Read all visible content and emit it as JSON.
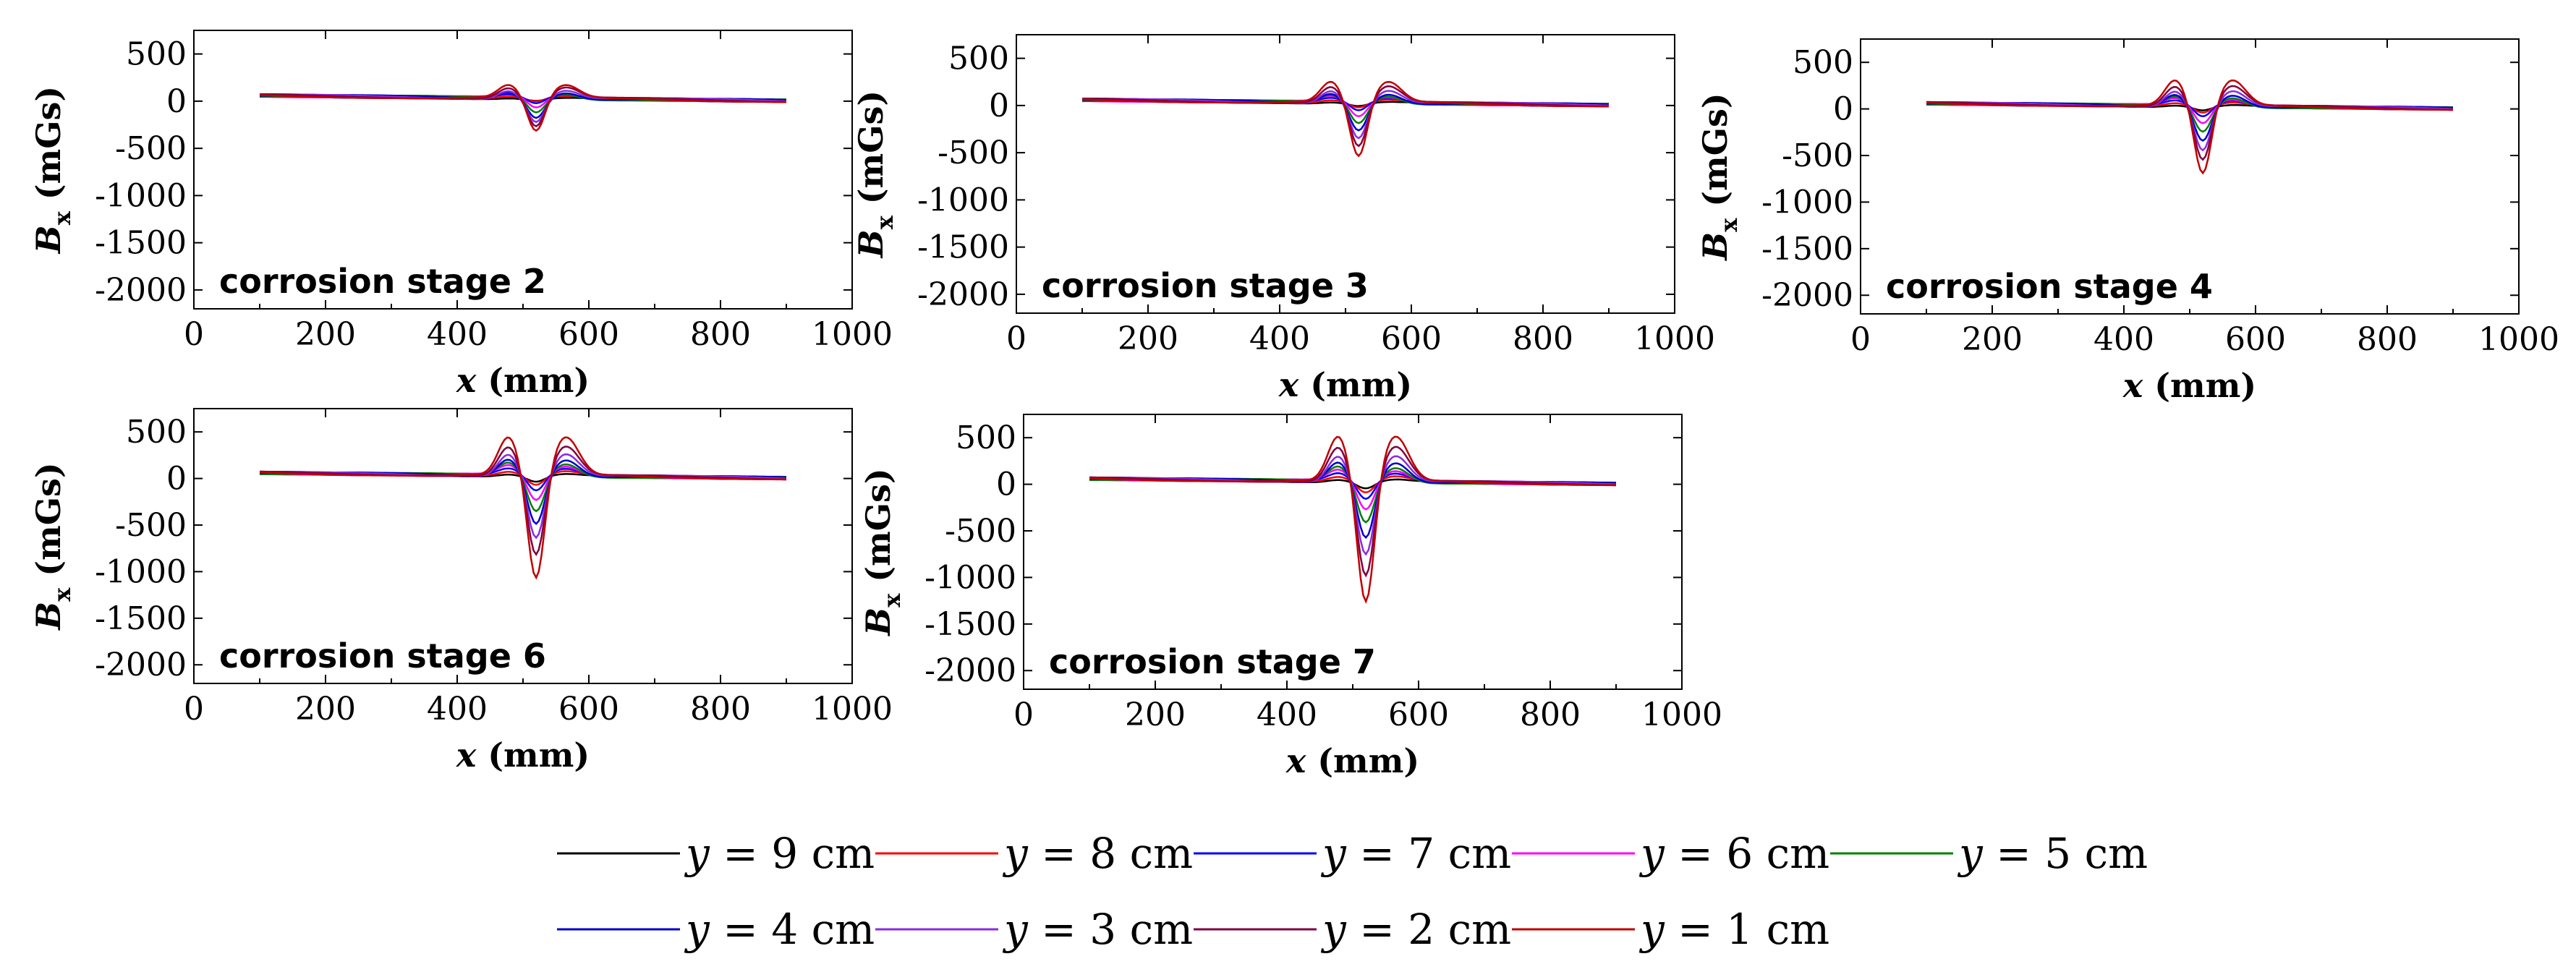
{
  "chart_data": [
    {
      "type": "line",
      "annotation": "corrosion stage 2",
      "xlabel_var": "x",
      "xlabel_unit": " (mm)",
      "ylabel_var": "B",
      "ylabel_sub": "x",
      "ylabel_unit": " (mGs)",
      "xlim": [
        0,
        1000
      ],
      "ylim": [
        -2200,
        750
      ],
      "xticks": [
        0,
        200,
        400,
        600,
        800,
        1000
      ],
      "yticks": [
        500,
        0,
        -500,
        -1000,
        -1500,
        -2000
      ],
      "amplitudes": [
        -20,
        -40,
        -70,
        -110,
        -150,
        -200,
        -250,
        -310,
        -370
      ]
    },
    {
      "type": "line",
      "annotation": "corrosion stage 3",
      "xlabel_var": "x",
      "xlabel_unit": " (mm)",
      "ylabel_var": "B",
      "ylabel_sub": "x",
      "ylabel_unit": " (mGs)",
      "xlim": [
        0,
        1000
      ],
      "ylim": [
        -2200,
        750
      ],
      "xticks": [
        0,
        200,
        400,
        600,
        800,
        1000
      ],
      "yticks": [
        500,
        0,
        -500,
        -1000,
        -1500,
        -2000
      ],
      "amplitudes": [
        -30,
        -60,
        -100,
        -160,
        -220,
        -290,
        -380,
        -480,
        -600
      ]
    },
    {
      "type": "line",
      "annotation": "corrosion stage 4",
      "xlabel_var": "x",
      "xlabel_unit": " (mm)",
      "ylabel_var": "B",
      "ylabel_sub": "x",
      "ylabel_unit": " (mGs)",
      "xlim": [
        0,
        1000
      ],
      "ylim": [
        -2200,
        750
      ],
      "xticks": [
        0,
        200,
        400,
        600,
        800,
        1000
      ],
      "yticks": [
        500,
        0,
        -500,
        -1000,
        -1500,
        -2000
      ],
      "amplitudes": [
        -40,
        -80,
        -130,
        -200,
        -280,
        -370,
        -480,
        -600,
        -760
      ]
    },
    {
      "type": "line",
      "annotation": "corrosion stage 6",
      "xlabel_var": "x",
      "xlabel_unit": " (mm)",
      "ylabel_var": "B",
      "ylabel_sub": "x",
      "ylabel_unit": " (mGs)",
      "xlim": [
        0,
        1000
      ],
      "ylim": [
        -2200,
        750
      ],
      "xticks": [
        0,
        200,
        400,
        600,
        800,
        1000
      ],
      "yticks": [
        500,
        0,
        -500,
        -1000,
        -1500,
        -2000
      ],
      "amplitudes": [
        -60,
        -110,
        -180,
        -280,
        -390,
        -520,
        -680,
        -880,
        -1150
      ]
    },
    {
      "type": "line",
      "annotation": "corrosion stage 7",
      "xlabel_var": "x",
      "xlabel_unit": " (mm)",
      "ylabel_var": "B",
      "ylabel_sub": "x",
      "ylabel_unit": " (mGs)",
      "xlim": [
        0,
        1000
      ],
      "ylim": [
        -2200,
        750
      ],
      "xticks": [
        0,
        200,
        400,
        600,
        800,
        1000
      ],
      "yticks": [
        500,
        0,
        -500,
        -1000,
        -1500,
        -2000
      ],
      "amplitudes": [
        -70,
        -130,
        -210,
        -320,
        -450,
        -610,
        -800,
        -1050,
        -1350
      ]
    }
  ],
  "legend": [
    {
      "var": "y",
      "rest": " = 9 cm",
      "color": "#000000"
    },
    {
      "var": "y",
      "rest": " = 8 cm",
      "color": "#ff0000"
    },
    {
      "var": "y",
      "rest": " = 7 cm",
      "color": "#0000ff"
    },
    {
      "var": "y",
      "rest": " = 6 cm",
      "color": "#ff00ff"
    },
    {
      "var": "y",
      "rest": " = 5 cm",
      "color": "#008000"
    },
    {
      "var": "y",
      "rest": " = 4 cm",
      "color": "#0000cc"
    },
    {
      "var": "y",
      "rest": " = 3 cm",
      "color": "#8a2be2"
    },
    {
      "var": "y",
      "rest": " = 2 cm",
      "color": "#800040"
    },
    {
      "var": "y",
      "rest": " = 1 cm",
      "color": "#c00000"
    }
  ]
}
